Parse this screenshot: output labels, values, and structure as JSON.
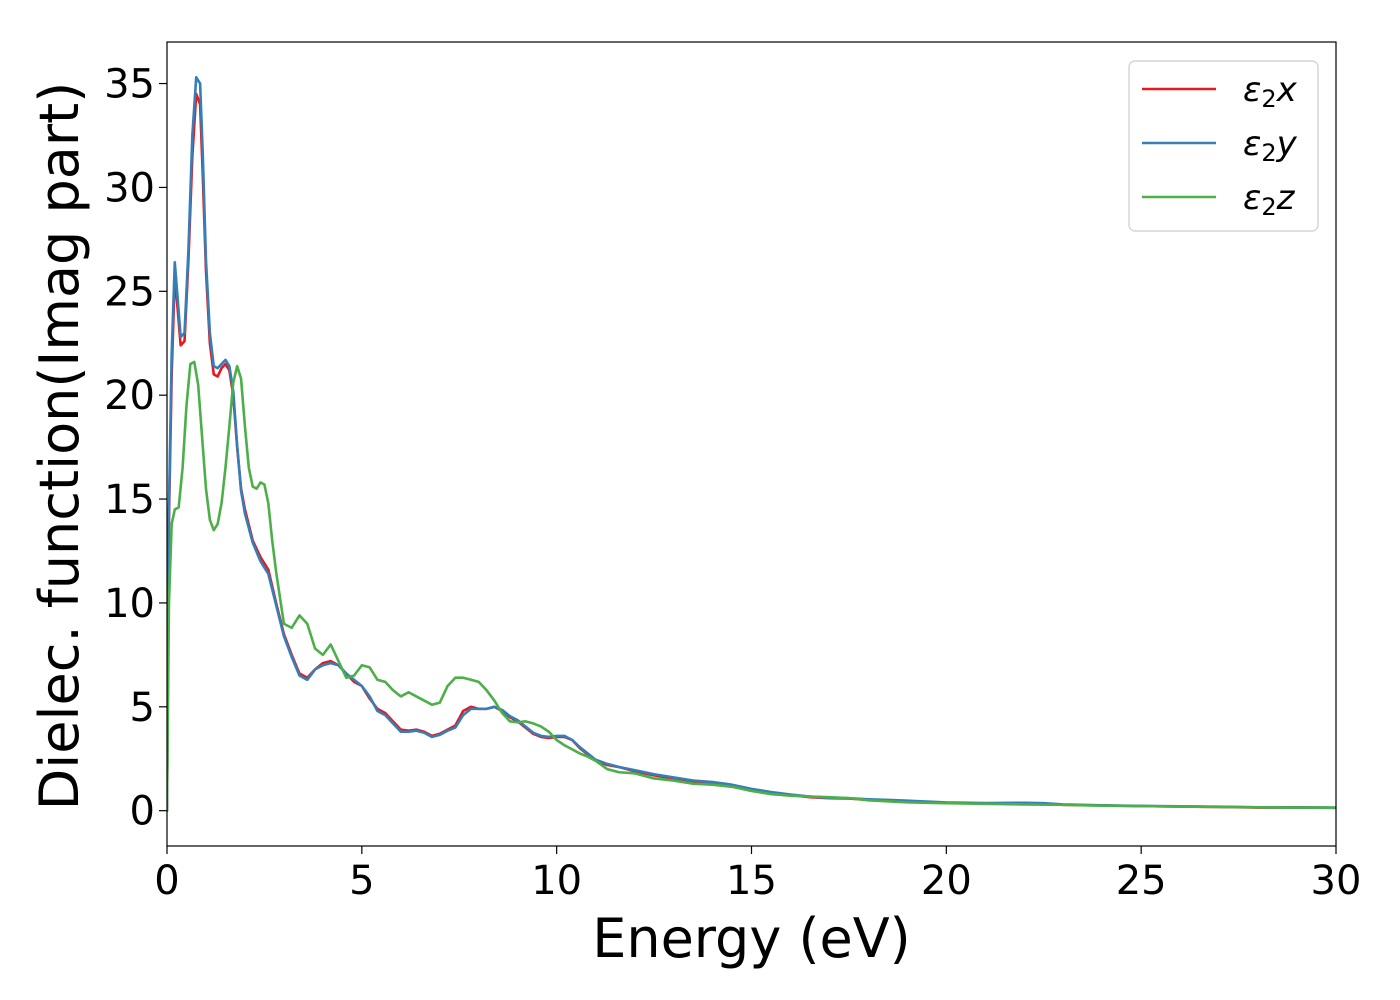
{
  "chart_data": {
    "type": "line",
    "title": "",
    "xlabel": "Energy (eV)",
    "ylabel": "Dielec. function(Imag part)",
    "xlim": [
      0,
      30
    ],
    "ylim": [
      -1.7,
      37
    ],
    "xticks": [
      0,
      5,
      10,
      15,
      20,
      25,
      30
    ],
    "yticks": [
      0,
      5,
      10,
      15,
      20,
      25,
      30,
      35
    ],
    "grid": false,
    "legend_position": "top-right",
    "series": [
      {
        "name": "ε₂x",
        "legend_base": "ε",
        "legend_sub": "2",
        "legend_var": "x",
        "color": "#e41a1c",
        "x": [
          0,
          0.05,
          0.12,
          0.2,
          0.28,
          0.35,
          0.45,
          0.55,
          0.65,
          0.75,
          0.85,
          0.92,
          1.0,
          1.1,
          1.2,
          1.3,
          1.4,
          1.5,
          1.6,
          1.7,
          1.8,
          1.9,
          2.0,
          2.2,
          2.4,
          2.6,
          2.8,
          3.0,
          3.2,
          3.4,
          3.6,
          3.8,
          4.0,
          4.2,
          4.4,
          4.6,
          4.8,
          5.0,
          5.2,
          5.4,
          5.6,
          5.8,
          6.0,
          6.2,
          6.4,
          6.6,
          6.8,
          7.0,
          7.2,
          7.4,
          7.6,
          7.8,
          8.0,
          8.2,
          8.4,
          8.6,
          8.8,
          9.0,
          9.2,
          9.4,
          9.6,
          9.8,
          10.0,
          10.2,
          10.4,
          10.6,
          10.8,
          11.0,
          11.3,
          11.6,
          12.0,
          12.5,
          13.0,
          13.5,
          14.0,
          14.5,
          15.0,
          15.5,
          16.0,
          16.5,
          17.0,
          17.5,
          18.0,
          18.5,
          19.0,
          19.5,
          20.0,
          21.0,
          22.0,
          22.5,
          23.0,
          24.0,
          25.0,
          26.0,
          27.0,
          28.0,
          29.0,
          30.0
        ],
        "values": [
          0,
          14,
          21,
          25.8,
          24.0,
          22.4,
          22.6,
          26.5,
          31.5,
          34.5,
          34.0,
          30.5,
          26.0,
          22.5,
          21.0,
          20.9,
          21.3,
          21.5,
          21.2,
          20.0,
          17.5,
          15.5,
          14.5,
          13.0,
          12.2,
          11.6,
          10.0,
          8.5,
          7.5,
          6.6,
          6.4,
          6.8,
          7.1,
          7.2,
          7.0,
          6.6,
          6.2,
          6.0,
          5.4,
          4.9,
          4.7,
          4.3,
          3.9,
          3.85,
          3.9,
          3.8,
          3.6,
          3.7,
          3.9,
          4.1,
          4.8,
          5.0,
          4.9,
          4.9,
          5.0,
          4.8,
          4.5,
          4.3,
          4.0,
          3.7,
          3.55,
          3.5,
          3.55,
          3.55,
          3.4,
          3.0,
          2.7,
          2.4,
          2.2,
          2.1,
          1.9,
          1.7,
          1.55,
          1.4,
          1.35,
          1.2,
          1.0,
          0.85,
          0.75,
          0.65,
          0.6,
          0.58,
          0.52,
          0.5,
          0.45,
          0.42,
          0.38,
          0.35,
          0.35,
          0.33,
          0.28,
          0.25,
          0.22,
          0.2,
          0.18,
          0.15,
          0.15,
          0.14
        ]
      },
      {
        "name": "ε₂y",
        "legend_base": "ε",
        "legend_sub": "2",
        "legend_var": "y",
        "color": "#377eb8",
        "x": [
          0,
          0.05,
          0.12,
          0.2,
          0.28,
          0.35,
          0.45,
          0.55,
          0.65,
          0.75,
          0.85,
          0.92,
          1.0,
          1.1,
          1.2,
          1.3,
          1.4,
          1.5,
          1.6,
          1.7,
          1.8,
          1.9,
          2.0,
          2.2,
          2.4,
          2.6,
          2.8,
          3.0,
          3.2,
          3.4,
          3.6,
          3.8,
          4.0,
          4.2,
          4.4,
          4.6,
          4.8,
          5.0,
          5.2,
          5.4,
          5.6,
          5.8,
          6.0,
          6.2,
          6.4,
          6.6,
          6.8,
          7.0,
          7.2,
          7.4,
          7.6,
          7.8,
          8.0,
          8.2,
          8.4,
          8.6,
          8.8,
          9.0,
          9.2,
          9.4,
          9.6,
          9.8,
          10.0,
          10.2,
          10.4,
          10.6,
          10.8,
          11.0,
          11.3,
          11.6,
          12.0,
          12.5,
          13.0,
          13.5,
          14.0,
          14.5,
          15.0,
          15.5,
          16.0,
          16.5,
          17.0,
          17.5,
          18.0,
          18.5,
          19.0,
          19.5,
          20.0,
          21.0,
          22.0,
          22.5,
          23.0,
          24.0,
          25.0,
          26.0,
          27.0,
          28.0,
          29.0,
          30.0
        ],
        "values": [
          0,
          14.5,
          22,
          26.4,
          24.5,
          22.8,
          23.0,
          27.0,
          32.5,
          35.3,
          35.0,
          31.5,
          26.5,
          23.0,
          21.4,
          21.3,
          21.5,
          21.7,
          21.4,
          20.2,
          17.6,
          15.4,
          14.3,
          12.9,
          12.0,
          11.4,
          9.9,
          8.4,
          7.4,
          6.5,
          6.3,
          6.8,
          7.0,
          7.1,
          7.0,
          6.6,
          6.3,
          6.0,
          5.5,
          4.8,
          4.6,
          4.2,
          3.8,
          3.8,
          3.85,
          3.75,
          3.55,
          3.65,
          3.85,
          4.0,
          4.6,
          4.9,
          4.9,
          4.9,
          5.0,
          4.85,
          4.55,
          4.35,
          4.05,
          3.75,
          3.6,
          3.55,
          3.6,
          3.6,
          3.4,
          3.05,
          2.75,
          2.45,
          2.25,
          2.1,
          1.95,
          1.75,
          1.6,
          1.45,
          1.38,
          1.25,
          1.05,
          0.9,
          0.78,
          0.68,
          0.62,
          0.6,
          0.55,
          0.52,
          0.48,
          0.44,
          0.4,
          0.37,
          0.38,
          0.36,
          0.3,
          0.26,
          0.23,
          0.21,
          0.19,
          0.16,
          0.16,
          0.15
        ]
      },
      {
        "name": "ε₂z",
        "legend_base": "ε",
        "legend_sub": "2",
        "legend_var": "z",
        "color": "#4daf4a",
        "x": [
          0,
          0.05,
          0.12,
          0.2,
          0.3,
          0.4,
          0.5,
          0.6,
          0.7,
          0.8,
          0.9,
          1.0,
          1.1,
          1.2,
          1.3,
          1.4,
          1.5,
          1.6,
          1.7,
          1.8,
          1.9,
          2.0,
          2.1,
          2.2,
          2.3,
          2.4,
          2.5,
          2.6,
          2.7,
          2.8,
          3.0,
          3.2,
          3.4,
          3.6,
          3.8,
          4.0,
          4.2,
          4.4,
          4.6,
          4.8,
          5.0,
          5.2,
          5.4,
          5.6,
          5.8,
          6.0,
          6.2,
          6.4,
          6.6,
          6.8,
          7.0,
          7.2,
          7.4,
          7.6,
          7.8,
          8.0,
          8.2,
          8.4,
          8.6,
          8.8,
          9.0,
          9.2,
          9.4,
          9.6,
          9.8,
          10.0,
          10.2,
          10.4,
          10.6,
          10.8,
          11.0,
          11.3,
          11.6,
          12.0,
          12.5,
          13.0,
          13.5,
          14.0,
          14.5,
          15.0,
          15.5,
          16.0,
          16.5,
          17.0,
          17.5,
          18.0,
          18.5,
          19.0,
          19.5,
          20.0,
          21.0,
          22.0,
          23.0,
          24.0,
          25.0,
          26.0,
          27.0,
          28.0,
          29.0,
          30.0
        ],
        "values": [
          0,
          10,
          13.8,
          14.5,
          14.6,
          16.5,
          19.5,
          21.5,
          21.6,
          20.5,
          18.0,
          15.5,
          14.0,
          13.5,
          13.8,
          14.8,
          16.5,
          18.5,
          20.6,
          21.4,
          20.8,
          18.5,
          16.5,
          15.6,
          15.5,
          15.8,
          15.7,
          14.8,
          13.0,
          11.5,
          9.0,
          8.8,
          9.4,
          9.0,
          7.8,
          7.5,
          8.0,
          7.2,
          6.4,
          6.5,
          7.0,
          6.9,
          6.3,
          6.2,
          5.8,
          5.5,
          5.7,
          5.5,
          5.3,
          5.1,
          5.2,
          6.0,
          6.4,
          6.4,
          6.3,
          6.2,
          5.8,
          5.3,
          4.7,
          4.3,
          4.25,
          4.3,
          4.2,
          4.05,
          3.8,
          3.4,
          3.15,
          2.95,
          2.75,
          2.6,
          2.4,
          2.0,
          1.85,
          1.8,
          1.55,
          1.45,
          1.3,
          1.25,
          1.15,
          0.95,
          0.8,
          0.72,
          0.68,
          0.65,
          0.6,
          0.5,
          0.45,
          0.4,
          0.38,
          0.36,
          0.33,
          0.3,
          0.28,
          0.24,
          0.22,
          0.2,
          0.18,
          0.16,
          0.15,
          0.14
        ]
      }
    ]
  }
}
